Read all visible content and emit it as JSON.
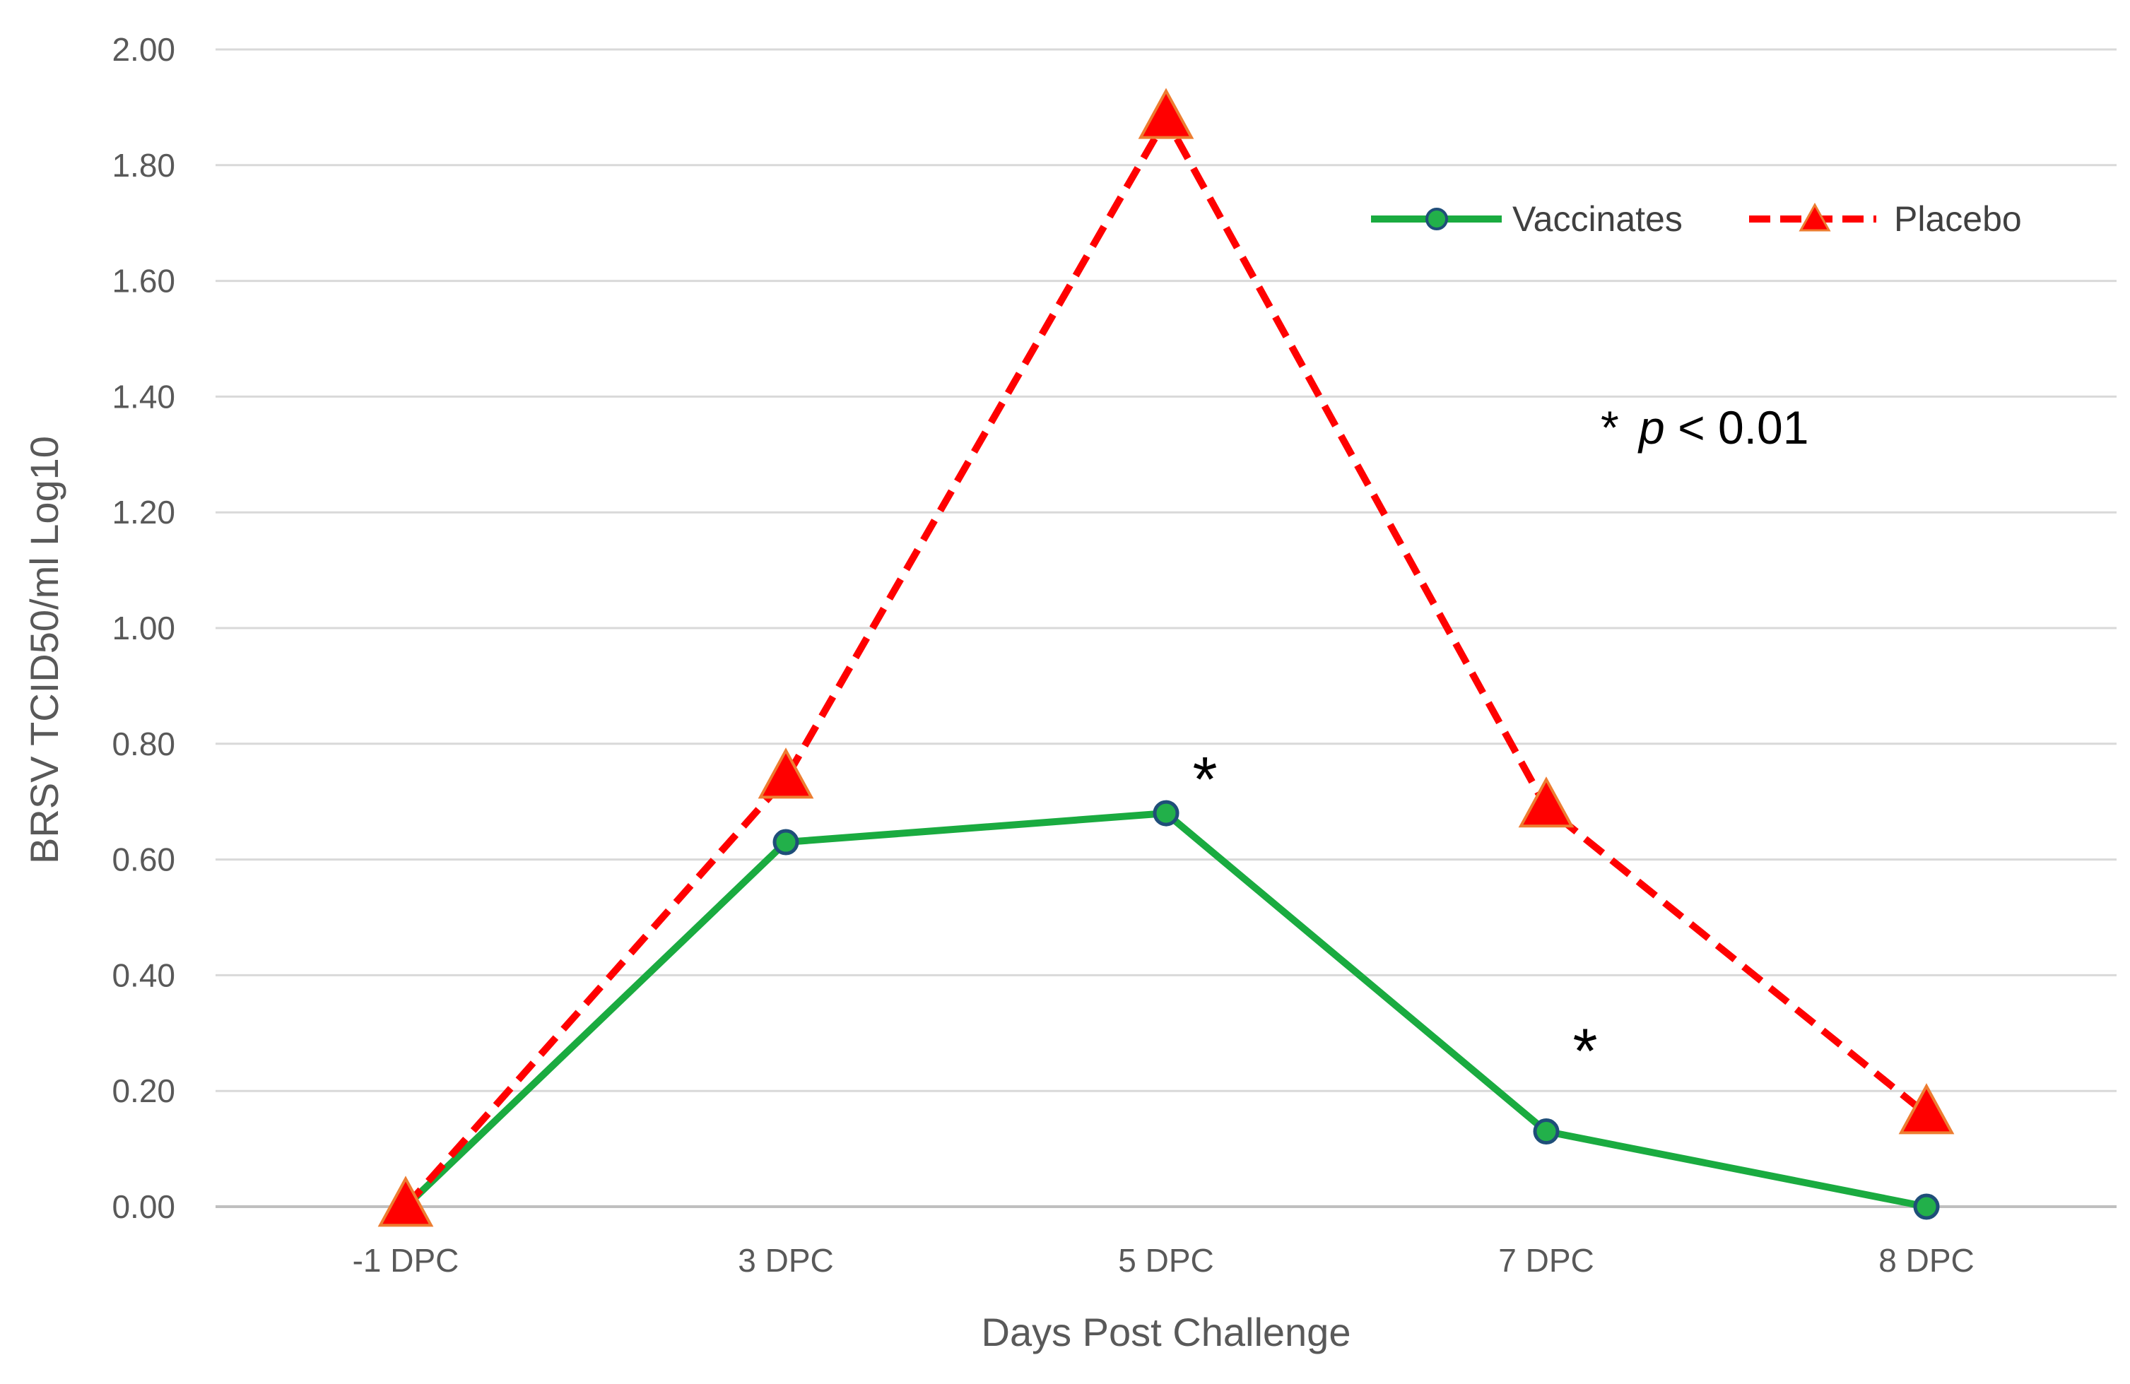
{
  "chart_data": {
    "type": "line",
    "categories": [
      "-1 DPC",
      "3 DPC",
      "5 DPC",
      "7 DPC",
      "8 DPC"
    ],
    "series": [
      {
        "name": "Vaccinates",
        "values": [
          0.0,
          0.63,
          0.68,
          0.13,
          0.0
        ],
        "color": "#1aab40",
        "marker_fill": "#22b04a",
        "marker_stroke": "#1f4e79",
        "marker": "circle",
        "line_style": "solid"
      },
      {
        "name": "Placebo",
        "values": [
          0.0,
          0.74,
          1.88,
          0.69,
          0.16
        ],
        "color": "#ff0000",
        "marker_fill": "#ff0000",
        "marker_stroke": "#ed7d31",
        "marker": "triangle",
        "line_style": "dashed"
      }
    ],
    "xlabel": "Days Post Challenge",
    "ylabel": "BRSV TCID50/ml Log10",
    "ylim": [
      0,
      2.0
    ],
    "ytick_step": 0.2,
    "ytick_labels": [
      "0.00",
      "0.20",
      "0.40",
      "0.60",
      "0.80",
      "1.00",
      "1.20",
      "1.40",
      "1.60",
      "1.80",
      "2.00"
    ],
    "grid": true,
    "legend_position": "top-right",
    "annotations": [
      {
        "text": "*",
        "category": "5 DPC",
        "y": 0.75
      },
      {
        "text": "*",
        "category": "7 DPC",
        "y": 0.28
      }
    ],
    "significance_note": {
      "star": "*",
      "p": "p",
      "rest": "< 0.01"
    }
  }
}
